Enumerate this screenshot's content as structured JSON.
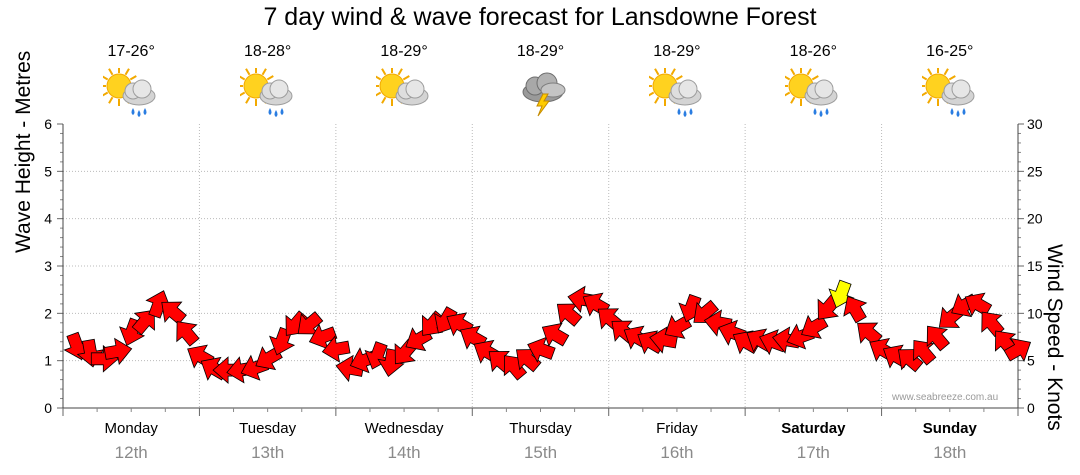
{
  "title": "7 day wind & wave forecast for Lansdowne Forest",
  "days": [
    {
      "name": "Monday",
      "date": "12th",
      "temp": "17-26°",
      "icon": "sun-cloud-rain-icon",
      "bold": false
    },
    {
      "name": "Tuesday",
      "date": "13th",
      "temp": "18-28°",
      "icon": "sun-cloud-rain-icon",
      "bold": false
    },
    {
      "name": "Wednesday",
      "date": "14th",
      "temp": "18-29°",
      "icon": "sun-cloud-icon",
      "bold": false
    },
    {
      "name": "Thursday",
      "date": "15th",
      "temp": "18-29°",
      "icon": "storm-cloud-icon",
      "bold": false
    },
    {
      "name": "Friday",
      "date": "16th",
      "temp": "18-29°",
      "icon": "sun-cloud-rain-icon",
      "bold": false
    },
    {
      "name": "Saturday",
      "date": "17th",
      "temp": "18-26°",
      "icon": "sun-cloud-rain-icon",
      "bold": true
    },
    {
      "name": "Sunday",
      "date": "18th",
      "temp": "16-25°",
      "icon": "sun-cloud-rain-icon",
      "bold": true
    }
  ],
  "credit": "www.seabreeze.com.au",
  "colors": {
    "arrow": "#ff0000",
    "highlight_arrow": "#ffff00",
    "grid": "#bbbbbb"
  },
  "chart_data": {
    "type": "line",
    "ylabel_left": "Wave Height - Metres",
    "ylabel_right": "Wind Speed - Knots",
    "left_ticks": [
      "0",
      "1",
      "2",
      "3",
      "4",
      "5",
      "6"
    ],
    "right_ticks": [
      "0",
      "5",
      "10",
      "15",
      "20",
      "25",
      "30"
    ],
    "ylim_left": [
      0,
      6
    ],
    "ylim_right": [
      0,
      30
    ],
    "grid": true,
    "x_days": 7,
    "series": [
      {
        "name": "Wind Speed",
        "unit": "knots",
        "x_day": [
          0.0,
          0.1,
          0.2,
          0.3,
          0.4,
          0.5,
          0.6,
          0.7,
          0.8,
          0.9,
          1.0,
          1.1,
          1.2,
          1.3,
          1.4,
          1.5,
          1.6,
          1.7,
          1.8,
          1.9,
          2.0,
          2.1,
          2.2,
          2.3,
          2.4,
          2.5,
          2.6,
          2.7,
          2.8,
          2.9,
          3.0,
          3.1,
          3.2,
          3.3,
          3.4,
          3.5,
          3.6,
          3.7,
          3.8,
          3.9,
          4.0,
          4.1,
          4.2,
          4.3,
          4.4,
          4.5,
          4.6,
          4.7,
          4.8,
          4.9,
          5.0,
          5.1,
          5.2,
          5.3,
          5.4,
          5.5,
          5.6,
          5.7,
          5.8,
          5.9,
          6.0,
          6.1,
          6.2,
          6.3,
          6.4,
          6.5,
          6.6,
          6.7,
          6.8,
          6.9
        ],
        "values": [
          6.5,
          5.8,
          5.2,
          6.0,
          8.0,
          9.2,
          11.0,
          10.2,
          8.0,
          5.5,
          4.2,
          4.0,
          4.0,
          4.2,
          5.2,
          7.0,
          8.8,
          8.8,
          7.5,
          6.2,
          4.2,
          5.0,
          5.5,
          4.8,
          5.8,
          7.2,
          8.8,
          9.2,
          8.9,
          7.5,
          6.0,
          5.0,
          4.4,
          5.2,
          6.2,
          7.8,
          10.0,
          11.5,
          11.0,
          9.5,
          8.2,
          7.5,
          7.0,
          7.2,
          8.5,
          10.5,
          10.0,
          9.0,
          8.0,
          7.0,
          7.2,
          7.0,
          7.2,
          7.5,
          8.5,
          10.5,
          12.0,
          10.5,
          8.0,
          6.2,
          5.5,
          5.2,
          6.0,
          7.5,
          9.5,
          10.8,
          11.0,
          9.0,
          7.0,
          6.2
        ],
        "direction_deg": [
          160,
          170,
          90,
          80,
          200,
          40,
          20,
          310,
          320,
          300,
          300,
          270,
          260,
          250,
          240,
          200,
          220,
          230,
          250,
          260,
          280,
          250,
          200,
          190,
          220,
          240,
          220,
          210,
          300,
          300,
          300,
          310,
          320,
          310,
          290,
          300,
          310,
          280,
          300,
          310,
          310,
          300,
          300,
          280,
          240,
          200,
          230,
          280,
          290,
          300,
          300,
          290,
          280,
          250,
          240,
          220,
          200,
          330,
          310,
          300,
          300,
          310,
          320,
          320,
          230,
          240,
          300,
          320,
          320,
          60
        ],
        "highlight_index": 56
      }
    ]
  }
}
